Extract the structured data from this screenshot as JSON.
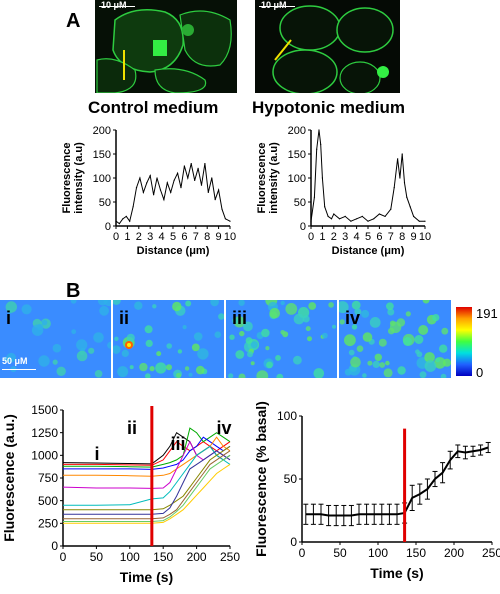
{
  "panel_a": {
    "letter": "A",
    "image_left": {
      "scale_label": "10 μM",
      "caption": "Control medium"
    },
    "image_right": {
      "scale_label": "10 μM",
      "caption": "Hypotonic medium"
    }
  },
  "panel_b": {
    "letter": "B",
    "frames": [
      "i",
      "ii",
      "iii",
      "iv"
    ],
    "frame_scale_label": "50 μM",
    "colorbar": {
      "max": "191",
      "min": "0"
    },
    "trace_annotations": [
      "i",
      "ii",
      "iii",
      "iv"
    ]
  },
  "colors": {
    "cell_green": "#2ecc40",
    "stim_line": "#e00000",
    "trace_colors": [
      "#000000",
      "#ff0000",
      "#00aa00",
      "#0000ff",
      "#ff8800",
      "#cc00cc",
      "#00bbbb",
      "#888800",
      "#333399",
      "#996633",
      "#66cc66",
      "#ffcc00"
    ]
  },
  "chart_data": [
    {
      "type": "line",
      "panel": "A-left",
      "title": "",
      "xlabel": "Distance (μm)",
      "ylabel": "Fluorescence intensity (a.u)",
      "xlim": [
        0,
        10
      ],
      "ylim": [
        0,
        200
      ],
      "xticks": [
        "0",
        "1",
        "2",
        "3",
        "4",
        "5",
        "6",
        "7",
        "8",
        "9",
        "10"
      ],
      "yticks": [
        "0",
        "50",
        "100",
        "150",
        "200"
      ],
      "x": [
        0,
        0.3,
        0.6,
        0.9,
        1.2,
        1.5,
        1.8,
        2.1,
        2.4,
        2.7,
        3.0,
        3.3,
        3.6,
        3.9,
        4.2,
        4.5,
        4.8,
        5.1,
        5.4,
        5.7,
        6.0,
        6.3,
        6.6,
        6.9,
        7.2,
        7.5,
        7.8,
        8.1,
        8.4,
        8.7,
        9.0,
        9.3,
        9.6,
        10
      ],
      "y": [
        10,
        5,
        15,
        20,
        10,
        40,
        80,
        100,
        70,
        90,
        105,
        65,
        100,
        75,
        55,
        90,
        70,
        95,
        110,
        80,
        125,
        100,
        130,
        95,
        120,
        85,
        130,
        70,
        100,
        55,
        75,
        35,
        15,
        10
      ]
    },
    {
      "type": "line",
      "panel": "A-right",
      "title": "",
      "xlabel": "Distance (μm)",
      "ylabel": "Fluorescence intensity (a.u)",
      "xlim": [
        0,
        10
      ],
      "ylim": [
        0,
        200
      ],
      "xticks": [
        "0",
        "1",
        "2",
        "3",
        "4",
        "5",
        "6",
        "7",
        "8",
        "9",
        "10"
      ],
      "yticks": [
        "0",
        "50",
        "100",
        "150",
        "200"
      ],
      "x": [
        0,
        0.3,
        0.5,
        0.7,
        0.85,
        1.0,
        1.2,
        1.5,
        1.8,
        2.0,
        2.5,
        3.0,
        3.5,
        4.0,
        4.5,
        5.0,
        5.5,
        6.0,
        6.5,
        7.0,
        7.3,
        7.6,
        7.8,
        8.0,
        8.2,
        8.4,
        8.7,
        9.0,
        9.5,
        10
      ],
      "y": [
        10,
        60,
        160,
        200,
        170,
        100,
        40,
        20,
        15,
        25,
        15,
        20,
        10,
        15,
        20,
        10,
        15,
        25,
        20,
        35,
        80,
        140,
        100,
        150,
        90,
        60,
        40,
        20,
        10,
        10
      ]
    },
    {
      "type": "line",
      "panel": "B-left",
      "title": "",
      "xlabel": "Time (s)",
      "ylabel": "Fluorescence (a.u.)",
      "xlim": [
        0,
        250
      ],
      "ylim": [
        0,
        1500
      ],
      "xticks": [
        "0",
        "50",
        "100",
        "150",
        "200",
        "250"
      ],
      "yticks": [
        "0",
        "250",
        "500",
        "750",
        "1000",
        "1250",
        "1500"
      ],
      "stimulus_x": 133,
      "x": [
        0,
        50,
        100,
        133,
        150,
        160,
        170,
        180,
        190,
        200,
        210,
        220,
        230,
        240,
        250
      ],
      "series": [
        {
          "values": [
            920,
            915,
            910,
            905,
            1000,
            1100,
            1250,
            1200,
            1150,
            1000,
            1050,
            1100,
            1000,
            950,
            1000
          ]
        },
        {
          "values": [
            900,
            900,
            895,
            890,
            950,
            1050,
            1150,
            1100,
            1050,
            1100,
            1150,
            1100,
            1050,
            1100,
            1150
          ]
        },
        {
          "values": [
            880,
            880,
            875,
            870,
            900,
            920,
            950,
            1000,
            1300,
            1250,
            1150,
            1200,
            1250,
            1200,
            1150
          ]
        },
        {
          "values": [
            850,
            850,
            850,
            845,
            860,
            880,
            900,
            950,
            1050,
            1100,
            1200,
            1150,
            1100,
            1050,
            1100
          ]
        },
        {
          "values": [
            780,
            780,
            775,
            770,
            780,
            800,
            850,
            900,
            950,
            1000,
            1050,
            1100,
            1200,
            1100,
            1050
          ]
        },
        {
          "values": [
            650,
            640,
            640,
            635,
            640,
            700,
            850,
            1000,
            1150,
            1000,
            950,
            1000,
            1050,
            1000,
            950
          ]
        },
        {
          "values": [
            450,
            450,
            455,
            520,
            530,
            600,
            700,
            800,
            900,
            1000,
            1050,
            1100,
            1000,
            950,
            900
          ]
        },
        {
          "values": [
            400,
            400,
            400,
            400,
            410,
            450,
            500,
            550,
            650,
            750,
            850,
            950,
            1000,
            1050,
            1100
          ]
        },
        {
          "values": [
            350,
            350,
            350,
            350,
            360,
            420,
            550,
            700,
            850,
            900,
            950,
            1000,
            1050,
            1000,
            950
          ]
        },
        {
          "values": [
            300,
            300,
            300,
            300,
            310,
            350,
            400,
            500,
            600,
            700,
            800,
            900,
            950,
            1000,
            1050
          ]
        },
        {
          "values": [
            270,
            270,
            270,
            270,
            280,
            320,
            380,
            450,
            550,
            650,
            750,
            850,
            900,
            950,
            1000
          ]
        },
        {
          "values": [
            250,
            250,
            250,
            250,
            260,
            300,
            350,
            400,
            480,
            560,
            640,
            720,
            800,
            850,
            900
          ]
        }
      ]
    },
    {
      "type": "line",
      "panel": "B-right",
      "title": "",
      "xlabel": "Time (s)",
      "ylabel": "Fluorescence (% basal)",
      "xlim": [
        0,
        250
      ],
      "ylim": [
        0,
        100
      ],
      "xticks": [
        "0",
        "50",
        "100",
        "150",
        "200",
        "250"
      ],
      "yticks": [
        "0",
        "50",
        "100"
      ],
      "stimulus_x": 135,
      "x": [
        5,
        15,
        25,
        35,
        45,
        55,
        65,
        75,
        85,
        95,
        105,
        115,
        125,
        135,
        145,
        155,
        165,
        175,
        185,
        195,
        205,
        215,
        225,
        235,
        245
      ],
      "y": [
        22,
        22,
        22,
        21,
        21,
        21,
        21,
        22,
        22,
        22,
        22,
        22,
        22,
        23,
        35,
        38,
        42,
        50,
        55,
        65,
        72,
        71,
        72,
        73,
        75
      ],
      "error": [
        8,
        8,
        8,
        8,
        8,
        8,
        8,
        8,
        8,
        8,
        8,
        8,
        8,
        8,
        10,
        8,
        8,
        6,
        8,
        7,
        5,
        5,
        4,
        4,
        4
      ]
    }
  ]
}
